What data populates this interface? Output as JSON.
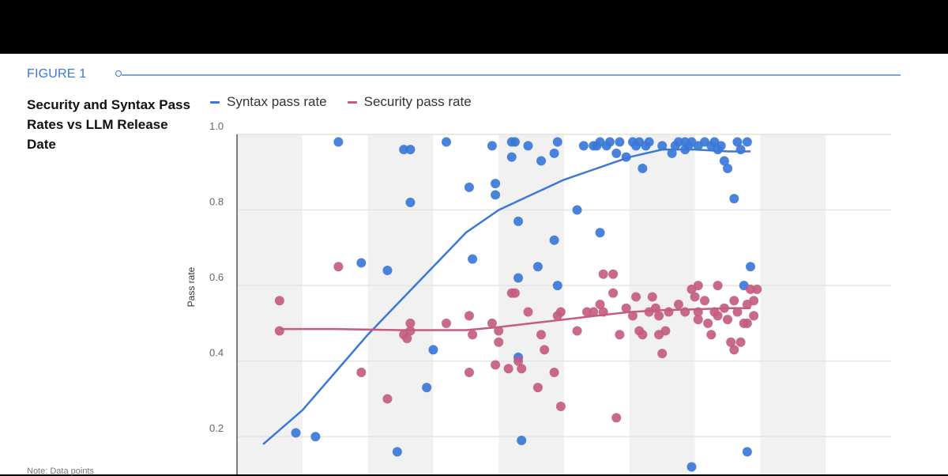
{
  "figure": {
    "label": "FIGURE 1"
  },
  "footnote": "Note: Data points",
  "chart_data": {
    "type": "scatter",
    "title": "Security and Syntax Pass Rates vs LLM Release Date",
    "xlabel": "",
    "ylabel": "Pass rate",
    "ylim": [
      0.1,
      1.0
    ],
    "xlim": [
      0,
      10
    ],
    "y_ticks": [
      {
        "value": 0.2,
        "label": "0.2"
      },
      {
        "value": 0.4,
        "label": "0.4"
      },
      {
        "value": 0.6,
        "label": "0.6"
      },
      {
        "value": 0.8,
        "label": "0.8"
      },
      {
        "value": 1.0,
        "label": "1.0"
      }
    ],
    "bands": [
      [
        0,
        1
      ],
      [
        2,
        3
      ],
      [
        4,
        5
      ],
      [
        6,
        7
      ],
      [
        8,
        9
      ]
    ],
    "legend": {
      "position": "top-left"
    },
    "colors": {
      "syntax": "#3b78d8",
      "security": "#c45c82",
      "band": "#f1f1f1",
      "grid": "#e4e4e4",
      "axis": "#555555"
    },
    "series": [
      {
        "name": "Syntax pass rate",
        "key": "syntax",
        "points": [
          [
            0.9,
            0.21
          ],
          [
            1.2,
            0.2
          ],
          [
            1.55,
            0.98
          ],
          [
            1.9,
            0.66
          ],
          [
            2.3,
            0.64
          ],
          [
            2.45,
            0.16
          ],
          [
            2.55,
            0.96
          ],
          [
            2.65,
            0.82
          ],
          [
            2.65,
            0.96
          ],
          [
            2.9,
            0.33
          ],
          [
            3.0,
            0.43
          ],
          [
            3.2,
            0.98
          ],
          [
            3.55,
            0.86
          ],
          [
            3.6,
            0.67
          ],
          [
            3.9,
            0.97
          ],
          [
            3.95,
            0.84
          ],
          [
            3.95,
            0.87
          ],
          [
            4.2,
            0.94
          ],
          [
            4.2,
            0.98
          ],
          [
            4.25,
            0.98
          ],
          [
            4.3,
            0.77
          ],
          [
            4.3,
            0.41
          ],
          [
            4.3,
            0.62
          ],
          [
            4.35,
            0.19
          ],
          [
            4.45,
            0.97
          ],
          [
            4.6,
            0.65
          ],
          [
            4.65,
            0.93
          ],
          [
            4.85,
            0.72
          ],
          [
            4.85,
            0.95
          ],
          [
            4.9,
            0.6
          ],
          [
            4.9,
            0.98
          ],
          [
            5.2,
            0.8
          ],
          [
            5.3,
            0.97
          ],
          [
            5.45,
            0.97
          ],
          [
            5.5,
            0.97
          ],
          [
            5.55,
            0.98
          ],
          [
            5.55,
            0.74
          ],
          [
            5.65,
            0.97
          ],
          [
            5.7,
            0.98
          ],
          [
            5.8,
            0.95
          ],
          [
            5.85,
            0.98
          ],
          [
            5.95,
            0.94
          ],
          [
            6.05,
            0.98
          ],
          [
            6.1,
            0.97
          ],
          [
            6.15,
            0.98
          ],
          [
            6.2,
            0.91
          ],
          [
            6.25,
            0.97
          ],
          [
            6.3,
            0.98
          ],
          [
            6.5,
            0.97
          ],
          [
            6.65,
            0.95
          ],
          [
            6.7,
            0.97
          ],
          [
            6.75,
            0.98
          ],
          [
            6.85,
            0.98
          ],
          [
            6.85,
            0.96
          ],
          [
            6.9,
            0.97
          ],
          [
            6.95,
            0.98
          ],
          [
            6.95,
            0.12
          ],
          [
            7.05,
            0.97
          ],
          [
            7.15,
            0.98
          ],
          [
            7.25,
            0.97
          ],
          [
            7.3,
            0.98
          ],
          [
            7.35,
            0.96
          ],
          [
            7.4,
            0.97
          ],
          [
            7.45,
            0.93
          ],
          [
            7.5,
            0.91
          ],
          [
            7.6,
            0.83
          ],
          [
            7.65,
            0.98
          ],
          [
            7.7,
            0.96
          ],
          [
            7.75,
            0.6
          ],
          [
            7.8,
            0.98
          ],
          [
            7.8,
            0.16
          ],
          [
            7.85,
            0.65
          ]
        ],
        "trend": [
          [
            0.4,
            0.18
          ],
          [
            1.0,
            0.27
          ],
          [
            1.5,
            0.37
          ],
          [
            2.0,
            0.47
          ],
          [
            2.5,
            0.56
          ],
          [
            3.0,
            0.65
          ],
          [
            3.5,
            0.74
          ],
          [
            4.0,
            0.8
          ],
          [
            4.5,
            0.84
          ],
          [
            5.0,
            0.88
          ],
          [
            5.5,
            0.91
          ],
          [
            6.0,
            0.94
          ],
          [
            6.5,
            0.96
          ],
          [
            7.0,
            0.96
          ],
          [
            7.5,
            0.955
          ],
          [
            7.85,
            0.955
          ]
        ]
      },
      {
        "name": "Security pass rate",
        "key": "security",
        "points": [
          [
            0.65,
            0.56
          ],
          [
            0.65,
            0.48
          ],
          [
            1.55,
            0.65
          ],
          [
            1.9,
            0.37
          ],
          [
            2.3,
            0.3
          ],
          [
            2.55,
            0.47
          ],
          [
            2.6,
            0.46
          ],
          [
            2.65,
            0.5
          ],
          [
            2.65,
            0.48
          ],
          [
            3.2,
            0.5
          ],
          [
            3.55,
            0.52
          ],
          [
            3.55,
            0.37
          ],
          [
            3.6,
            0.47
          ],
          [
            3.9,
            0.5
          ],
          [
            3.95,
            0.39
          ],
          [
            4.0,
            0.45
          ],
          [
            4.0,
            0.48
          ],
          [
            4.15,
            0.38
          ],
          [
            4.2,
            0.58
          ],
          [
            4.25,
            0.58
          ],
          [
            4.3,
            0.4
          ],
          [
            4.35,
            0.38
          ],
          [
            4.45,
            0.53
          ],
          [
            4.6,
            0.33
          ],
          [
            4.65,
            0.47
          ],
          [
            4.7,
            0.43
          ],
          [
            4.85,
            0.37
          ],
          [
            4.9,
            0.52
          ],
          [
            4.95,
            0.28
          ],
          [
            4.95,
            0.53
          ],
          [
            5.2,
            0.48
          ],
          [
            5.35,
            0.53
          ],
          [
            5.45,
            0.53
          ],
          [
            5.55,
            0.55
          ],
          [
            5.6,
            0.63
          ],
          [
            5.6,
            0.53
          ],
          [
            5.75,
            0.63
          ],
          [
            5.75,
            0.58
          ],
          [
            5.8,
            0.25
          ],
          [
            5.85,
            0.47
          ],
          [
            5.95,
            0.54
          ],
          [
            6.05,
            0.52
          ],
          [
            6.1,
            0.57
          ],
          [
            6.15,
            0.48
          ],
          [
            6.2,
            0.47
          ],
          [
            6.3,
            0.53
          ],
          [
            6.35,
            0.57
          ],
          [
            6.4,
            0.54
          ],
          [
            6.45,
            0.52
          ],
          [
            6.45,
            0.47
          ],
          [
            6.5,
            0.42
          ],
          [
            6.55,
            0.48
          ],
          [
            6.6,
            0.53
          ],
          [
            6.75,
            0.55
          ],
          [
            6.85,
            0.53
          ],
          [
            6.95,
            0.59
          ],
          [
            7.0,
            0.57
          ],
          [
            7.05,
            0.6
          ],
          [
            7.05,
            0.53
          ],
          [
            7.05,
            0.51
          ],
          [
            7.15,
            0.56
          ],
          [
            7.2,
            0.5
          ],
          [
            7.25,
            0.47
          ],
          [
            7.3,
            0.53
          ],
          [
            7.35,
            0.6
          ],
          [
            7.35,
            0.52
          ],
          [
            7.45,
            0.54
          ],
          [
            7.5,
            0.51
          ],
          [
            7.55,
            0.45
          ],
          [
            7.6,
            0.56
          ],
          [
            7.6,
            0.43
          ],
          [
            7.65,
            0.53
          ],
          [
            7.7,
            0.45
          ],
          [
            7.75,
            0.5
          ],
          [
            7.8,
            0.55
          ],
          [
            7.8,
            0.5
          ],
          [
            7.85,
            0.59
          ],
          [
            7.9,
            0.56
          ],
          [
            7.9,
            0.52
          ],
          [
            7.95,
            0.59
          ]
        ],
        "trend": [
          [
            0.65,
            0.485
          ],
          [
            1.5,
            0.485
          ],
          [
            2.5,
            0.482
          ],
          [
            3.5,
            0.482
          ],
          [
            4.0,
            0.49
          ],
          [
            4.5,
            0.5
          ],
          [
            5.0,
            0.51
          ],
          [
            5.5,
            0.52
          ],
          [
            6.0,
            0.53
          ],
          [
            6.5,
            0.535
          ],
          [
            7.0,
            0.537
          ],
          [
            7.5,
            0.54
          ],
          [
            7.85,
            0.54
          ]
        ]
      }
    ]
  }
}
